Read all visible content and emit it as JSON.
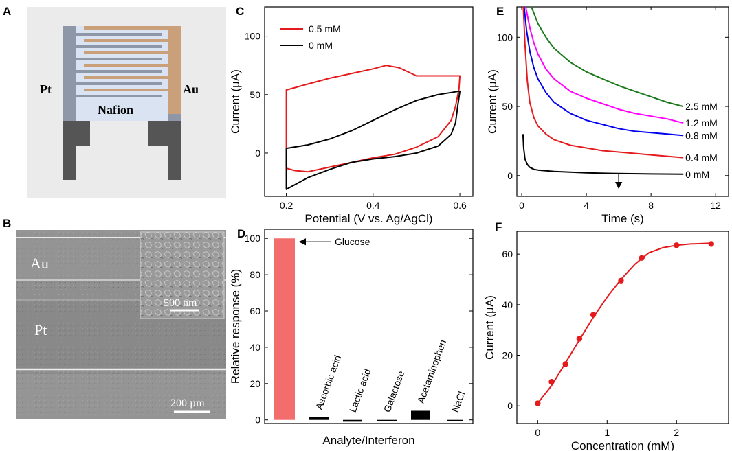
{
  "panel_labels": {
    "a": "A",
    "b": "B",
    "c": "C",
    "d": "D",
    "e": "E",
    "f": "F"
  },
  "schematic": {
    "left_label": "Pt",
    "right_label": "Au",
    "center_label": "Nafion"
  },
  "sem": {
    "au_label": "Au",
    "pt_label": "Pt",
    "scale_main": "200 µm",
    "scale_inset": "500 nm"
  },
  "chart_data": [
    {
      "id": "C",
      "type": "line",
      "xlabel": "Potential (V vs. Ag/AgCl)",
      "ylabel": "Current (µA)",
      "xlim": [
        0.15,
        0.63
      ],
      "ylim": [
        -37,
        125
      ],
      "xticks": [
        "0.2",
        "0.4",
        "0.6"
      ],
      "xtick_values": [
        0.2,
        0.4,
        0.6
      ],
      "yticks": [
        "0",
        "50",
        "100"
      ],
      "ytick_values": [
        0,
        50,
        100
      ],
      "legend": "top-left",
      "series": [
        {
          "name": "0.5 mM",
          "color": "#e41a1c",
          "x": [
            0.2,
            0.2,
            0.25,
            0.3,
            0.35,
            0.4,
            0.43,
            0.46,
            0.5,
            0.55,
            0.6,
            0.598,
            0.59,
            0.58,
            0.55,
            0.5,
            0.45,
            0.4,
            0.35,
            0.3,
            0.25,
            0.22,
            0.2
          ],
          "y": [
            -13,
            54,
            59,
            64,
            68,
            72,
            75,
            73,
            66,
            66,
            66,
            55,
            40,
            28,
            14,
            5,
            -1,
            -4,
            -8,
            -12,
            -16,
            -15,
            -13
          ]
        },
        {
          "name": "0 mM",
          "color": "#000000",
          "x": [
            0.2,
            0.2,
            0.25,
            0.3,
            0.35,
            0.4,
            0.45,
            0.5,
            0.55,
            0.6,
            0.595,
            0.59,
            0.58,
            0.55,
            0.5,
            0.45,
            0.4,
            0.35,
            0.3,
            0.25,
            0.2
          ],
          "y": [
            -31,
            4,
            7,
            12,
            19,
            28,
            37,
            45,
            50,
            53,
            40,
            26,
            16,
            6,
            0,
            -3,
            -5,
            -8,
            -14,
            -21,
            -31
          ]
        }
      ]
    },
    {
      "id": "D",
      "type": "bar",
      "xlabel": "Analyte/Interferon",
      "ylabel": "Relative response (%)",
      "ylim": [
        -2,
        105
      ],
      "yticks": [
        "0",
        "20",
        "40",
        "60",
        "80",
        "100"
      ],
      "ytick_values": [
        0,
        20,
        40,
        60,
        80,
        100
      ],
      "categories": [
        "Glucose",
        "Ascorbic acid",
        "Lactic acid",
        "Galactose",
        "Acetaminophen",
        "NaCl"
      ],
      "values": [
        100,
        1.5,
        -1,
        -0.5,
        5,
        -0.3
      ],
      "colors": [
        "#f46d6d",
        "#000000",
        "#000000",
        "#000000",
        "#000000",
        "#000000"
      ],
      "annotation": "Glucose"
    },
    {
      "id": "E",
      "type": "line",
      "xlabel": "Time (s)",
      "ylabel": "Current (µA)",
      "xlim": [
        -0.3,
        12.8
      ],
      "ylim": [
        -15,
        122
      ],
      "xticks": [
        "0",
        "4",
        "8",
        "12"
      ],
      "xtick_values": [
        0,
        4,
        8,
        12
      ],
      "yticks": [
        "0",
        "50",
        "100"
      ],
      "ytick_values": [
        0,
        50,
        100
      ],
      "arrow_at_time": 6,
      "series": [
        {
          "name": "2.5 mM",
          "color": "#1a7a1a",
          "x": [
            0.6,
            1,
            1.5,
            2,
            3,
            4,
            5,
            6,
            7,
            8,
            9,
            10
          ],
          "y": [
            122,
            110,
            100,
            92,
            82,
            75,
            70,
            65,
            61,
            57,
            53,
            50
          ]
        },
        {
          "name": "1.2 mM",
          "color": "#ff00ff",
          "x": [
            0.25,
            0.5,
            0.75,
            1,
            1.5,
            2,
            3,
            4,
            5,
            6,
            7,
            8,
            9,
            10
          ],
          "y": [
            122,
            107,
            96,
            88,
            77,
            70,
            61,
            56,
            52,
            48,
            45,
            43,
            41,
            38
          ]
        },
        {
          "name": "0.8 mM",
          "color": "#0000ee",
          "x": [
            0.15,
            0.3,
            0.5,
            0.75,
            1,
            1.5,
            2,
            3,
            4,
            5,
            6,
            7,
            8,
            9,
            10
          ],
          "y": [
            122,
            105,
            90,
            78,
            70,
            60,
            53,
            45,
            40,
            37,
            34,
            32,
            31,
            30,
            29
          ]
        },
        {
          "name": "0.4 mM",
          "color": "#e41a1c",
          "x": [
            0.1,
            0.2,
            0.35,
            0.5,
            0.75,
            1,
            1.5,
            2,
            3,
            4,
            5,
            6,
            7,
            8,
            9,
            10
          ],
          "y": [
            122,
            95,
            68,
            53,
            42,
            36,
            30,
            26,
            22,
            20,
            18,
            17,
            16,
            15,
            14,
            13
          ]
        },
        {
          "name": "0 mM",
          "color": "#000000",
          "x": [
            0.08,
            0.12,
            0.2,
            0.35,
            0.5,
            0.75,
            1,
            1.5,
            2,
            3,
            4,
            6,
            8,
            10
          ],
          "y": [
            30,
            20,
            12,
            8,
            6,
            4.5,
            4,
            3.5,
            3,
            2.5,
            2,
            1.5,
            1.2,
            1
          ]
        }
      ]
    },
    {
      "id": "F",
      "type": "scatter",
      "xlabel": "Concentration (mM)",
      "ylabel": "Current (µA)",
      "xlim": [
        -0.3,
        2.75
      ],
      "ylim": [
        -7,
        69
      ],
      "xticks": [
        "0",
        "1",
        "2"
      ],
      "xtick_values": [
        0,
        1,
        2
      ],
      "yticks": [
        "0",
        "20",
        "40",
        "60"
      ],
      "ytick_values": [
        0,
        20,
        40,
        60
      ],
      "color": "#e41a1c",
      "x": [
        0,
        0.2,
        0.4,
        0.6,
        0.8,
        1.2,
        1.5,
        2.0,
        2.5
      ],
      "y": [
        1,
        9.5,
        16.5,
        26.5,
        36,
        49.5,
        58.5,
        63.5,
        64
      ],
      "fit_x": [
        0,
        0.2,
        0.4,
        0.6,
        0.8,
        1.0,
        1.2,
        1.4,
        1.6,
        1.8,
        2.0,
        2.2,
        2.5
      ],
      "fit_y": [
        1,
        8,
        17,
        26,
        35,
        43,
        50,
        56,
        60.5,
        62.5,
        63.5,
        64,
        64.3
      ]
    }
  ]
}
